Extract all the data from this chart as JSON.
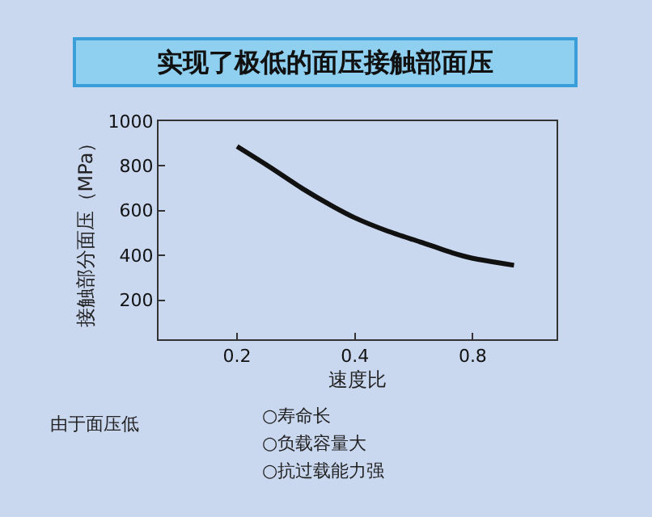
{
  "chart_data": {
    "type": "line",
    "title": "实现了极低的面压接触部面压",
    "xlabel": "速度比",
    "ylabel": "接触部分面压（MPa）",
    "x": [
      0.2,
      0.242,
      0.293,
      0.354,
      0.4,
      0.486,
      0.588,
      0.711,
      0.8,
      1.02
    ],
    "series": [
      {
        "color": "#111111",
        "values": [
          887,
          796,
          700,
          616,
          568,
          508,
          460,
          411,
          387,
          356
        ]
      }
    ],
    "log": "x",
    "xlim": [
      0.126,
      1.31
    ],
    "xticks": [
      0.2,
      0.4,
      0.8
    ],
    "ylim": [
      25,
      1000
    ],
    "yticks": [
      200,
      400,
      600,
      800,
      1000
    ],
    "grid": false,
    "legend": false,
    "marker": "none",
    "line_style": "solid",
    "annotations": [
      "由于面压低",
      "○寿命长",
      "○负载容量大",
      "○抗过载能力强"
    ]
  }
}
